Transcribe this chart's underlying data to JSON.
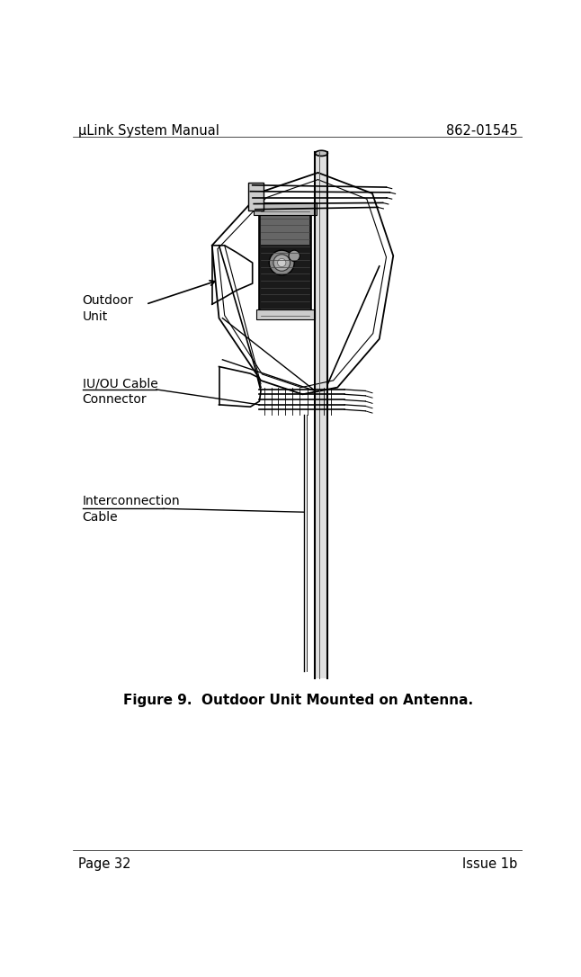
{
  "header_left": "μLink System Manual",
  "header_right": "862-01545",
  "footer_left": "Page 32",
  "footer_right": "Issue 1b",
  "figure_caption": "Figure 9.  Outdoor Unit Mounted on Antenna.",
  "label_outdoor_unit": "Outdoor\nUnit",
  "label_iu_ou": "IU/OU Cable\nConnector",
  "label_interconnection": "Interconnection\nCable",
  "bg_color": "#ffffff",
  "text_color": "#000000",
  "line_color": "#000000",
  "header_fontsize": 10.5,
  "footer_fontsize": 10.5,
  "caption_fontsize": 11,
  "label_fontsize": 10
}
